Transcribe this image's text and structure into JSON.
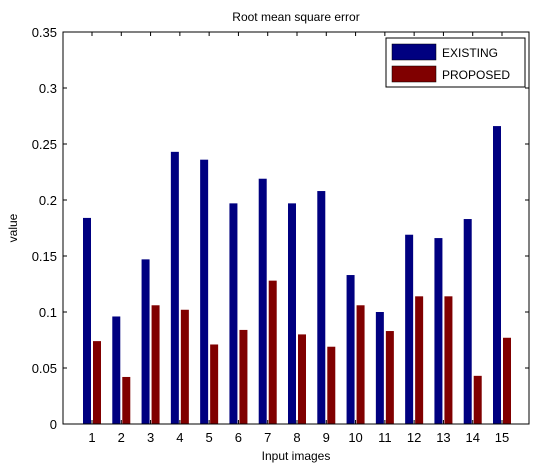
{
  "chart_data": {
    "type": "bar",
    "title": "Root mean square error",
    "xlabel": "Input images",
    "ylabel": "value",
    "categories": [
      "1",
      "2",
      "3",
      "4",
      "5",
      "6",
      "7",
      "8",
      "9",
      "10",
      "11",
      "12",
      "13",
      "14",
      "15"
    ],
    "ylim": [
      0,
      0.35
    ],
    "yticks": [
      "0",
      "0.05",
      "0.1",
      "0.15",
      "0.2",
      "0.25",
      "0.3",
      "0.35"
    ],
    "grid": false,
    "legend_position": "top-right",
    "series": [
      {
        "name": "EXISTING",
        "color": "#000080",
        "values": [
          0.184,
          0.096,
          0.147,
          0.243,
          0.236,
          0.197,
          0.219,
          0.197,
          0.208,
          0.133,
          0.1,
          0.169,
          0.166,
          0.183,
          0.266
        ]
      },
      {
        "name": "PROPOSED",
        "color": "#800000",
        "values": [
          0.074,
          0.042,
          0.106,
          0.102,
          0.071,
          0.084,
          0.128,
          0.08,
          0.069,
          0.106,
          0.083,
          0.114,
          0.114,
          0.043,
          0.077
        ]
      }
    ]
  }
}
